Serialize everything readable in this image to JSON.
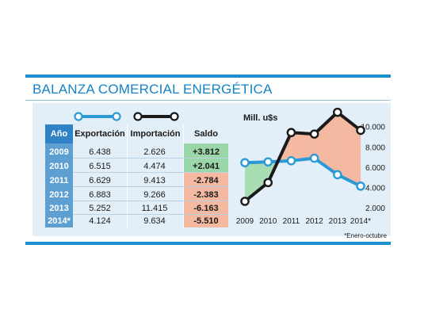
{
  "title": "BALANZA COMERCIAL ENERGÉTICA",
  "table": {
    "headers": [
      "Año",
      "Exportación",
      "Importación",
      "Saldo"
    ],
    "rows": [
      {
        "year": "2009",
        "exp": "6.438",
        "imp": "2.626",
        "saldo": "+3.812"
      },
      {
        "year": "2010",
        "exp": "6.515",
        "imp": "4.474",
        "saldo": "+2.041"
      },
      {
        "year": "2011",
        "exp": "6.629",
        "imp": "9.413",
        "saldo": "-2.784"
      },
      {
        "year": "2012",
        "exp": "6.883",
        "imp": "9.266",
        "saldo": "-2.383"
      },
      {
        "year": "2013",
        "exp": "5.252",
        "imp": "11.415",
        "saldo": "-6.163"
      },
      {
        "year": "2014*",
        "exp": "4.124",
        "imp": "9.634",
        "saldo": "-5.510"
      }
    ]
  },
  "footnote": "*Enero-octubre",
  "colors": {
    "accent": "#1b8fd0",
    "export_line": "#2a9ad6",
    "import_line": "#1a1a1a",
    "surplus_fill": "#a8dcb3",
    "deficit_fill": "#f4b9a0",
    "panel_bg": "#e3eff8"
  },
  "chart_data": {
    "type": "line",
    "ylabel": "Mill. u$s",
    "categories": [
      "2009",
      "2010",
      "2011",
      "2012",
      "2013",
      "2014*"
    ],
    "series": [
      {
        "name": "Exportación",
        "values": [
          6438,
          6515,
          6629,
          6883,
          5252,
          4124
        ],
        "color": "#2a9ad6"
      },
      {
        "name": "Importación",
        "values": [
          2626,
          4474,
          9413,
          9266,
          11415,
          9634
        ],
        "color": "#1a1a1a"
      }
    ],
    "yticks": [
      "10.000",
      "8.000",
      "6.000",
      "4.000",
      "2.000"
    ],
    "ytick_values": [
      10000,
      8000,
      6000,
      4000,
      2000
    ],
    "ylim": [
      2000,
      11700
    ],
    "shading": "surplus green, deficit salmon between series",
    "legend": "line swatches above table columns"
  }
}
